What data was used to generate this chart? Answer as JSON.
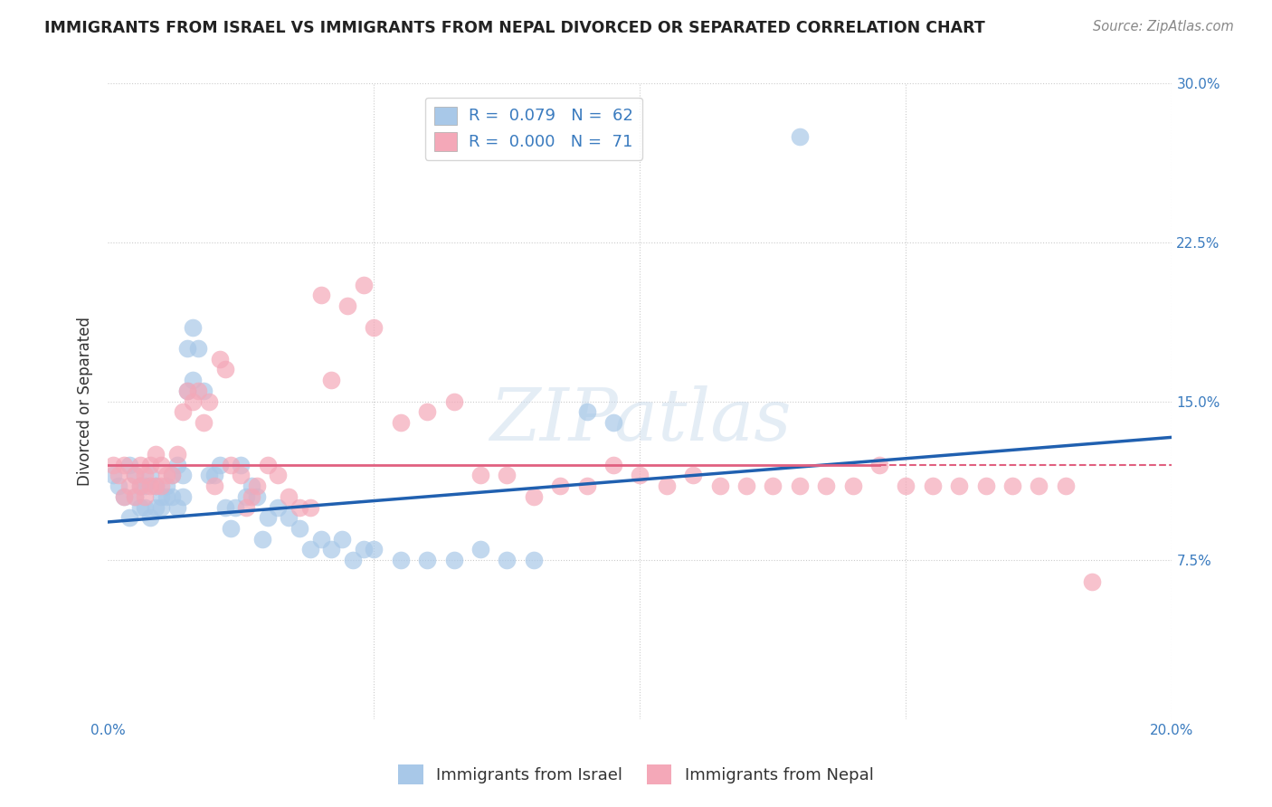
{
  "title": "IMMIGRANTS FROM ISRAEL VS IMMIGRANTS FROM NEPAL DIVORCED OR SEPARATED CORRELATION CHART",
  "source": "Source: ZipAtlas.com",
  "ylabel": "Divorced or Separated",
  "xlim": [
    0.0,
    0.2
  ],
  "ylim": [
    0.0,
    0.3
  ],
  "legend_israel_R": "0.079",
  "legend_israel_N": "62",
  "legend_nepal_R": "0.000",
  "legend_nepal_N": "71",
  "israel_color": "#a8c8e8",
  "nepal_color": "#f4a8b8",
  "israel_line_color": "#2060b0",
  "nepal_line_color": "#e06080",
  "israel_scatter_x": [
    0.001,
    0.002,
    0.003,
    0.004,
    0.004,
    0.005,
    0.005,
    0.006,
    0.006,
    0.007,
    0.007,
    0.008,
    0.008,
    0.009,
    0.009,
    0.01,
    0.01,
    0.011,
    0.011,
    0.012,
    0.012,
    0.013,
    0.013,
    0.014,
    0.014,
    0.015,
    0.015,
    0.016,
    0.016,
    0.017,
    0.018,
    0.019,
    0.02,
    0.021,
    0.022,
    0.023,
    0.024,
    0.025,
    0.026,
    0.027,
    0.028,
    0.029,
    0.03,
    0.032,
    0.034,
    0.036,
    0.038,
    0.04,
    0.042,
    0.044,
    0.046,
    0.048,
    0.05,
    0.055,
    0.06,
    0.065,
    0.07,
    0.075,
    0.08,
    0.09,
    0.095,
    0.13
  ],
  "israel_scatter_y": [
    0.115,
    0.11,
    0.105,
    0.12,
    0.095,
    0.105,
    0.115,
    0.1,
    0.11,
    0.1,
    0.11,
    0.095,
    0.115,
    0.1,
    0.11,
    0.105,
    0.1,
    0.11,
    0.105,
    0.105,
    0.115,
    0.1,
    0.12,
    0.105,
    0.115,
    0.175,
    0.155,
    0.185,
    0.16,
    0.175,
    0.155,
    0.115,
    0.115,
    0.12,
    0.1,
    0.09,
    0.1,
    0.12,
    0.105,
    0.11,
    0.105,
    0.085,
    0.095,
    0.1,
    0.095,
    0.09,
    0.08,
    0.085,
    0.08,
    0.085,
    0.075,
    0.08,
    0.08,
    0.075,
    0.075,
    0.075,
    0.08,
    0.075,
    0.075,
    0.145,
    0.14,
    0.275
  ],
  "nepal_scatter_x": [
    0.001,
    0.002,
    0.003,
    0.003,
    0.004,
    0.005,
    0.005,
    0.006,
    0.006,
    0.007,
    0.007,
    0.008,
    0.008,
    0.009,
    0.009,
    0.01,
    0.01,
    0.011,
    0.012,
    0.013,
    0.014,
    0.015,
    0.016,
    0.017,
    0.018,
    0.019,
    0.02,
    0.021,
    0.022,
    0.023,
    0.025,
    0.026,
    0.027,
    0.028,
    0.03,
    0.032,
    0.034,
    0.036,
    0.038,
    0.04,
    0.042,
    0.045,
    0.048,
    0.05,
    0.055,
    0.06,
    0.065,
    0.07,
    0.075,
    0.08,
    0.085,
    0.09,
    0.095,
    0.1,
    0.105,
    0.11,
    0.115,
    0.12,
    0.125,
    0.13,
    0.135,
    0.14,
    0.145,
    0.15,
    0.155,
    0.16,
    0.165,
    0.17,
    0.175,
    0.18,
    0.185
  ],
  "nepal_scatter_y": [
    0.12,
    0.115,
    0.105,
    0.12,
    0.11,
    0.105,
    0.115,
    0.11,
    0.12,
    0.105,
    0.115,
    0.11,
    0.12,
    0.11,
    0.125,
    0.11,
    0.12,
    0.115,
    0.115,
    0.125,
    0.145,
    0.155,
    0.15,
    0.155,
    0.14,
    0.15,
    0.11,
    0.17,
    0.165,
    0.12,
    0.115,
    0.1,
    0.105,
    0.11,
    0.12,
    0.115,
    0.105,
    0.1,
    0.1,
    0.2,
    0.16,
    0.195,
    0.205,
    0.185,
    0.14,
    0.145,
    0.15,
    0.115,
    0.115,
    0.105,
    0.11,
    0.11,
    0.12,
    0.115,
    0.11,
    0.115,
    0.11,
    0.11,
    0.11,
    0.11,
    0.11,
    0.11,
    0.12,
    0.11,
    0.11,
    0.11,
    0.11,
    0.11,
    0.11,
    0.11,
    0.065
  ],
  "watermark": "ZIPatlas",
  "background_color": "#ffffff",
  "grid_color": "#cccccc",
  "israel_line_x0": 0.0,
  "israel_line_y0": 0.093,
  "israel_line_x1": 0.2,
  "israel_line_y1": 0.133,
  "nepal_line_x0": 0.0,
  "nepal_line_y0": 0.12,
  "nepal_line_x1": 0.145,
  "nepal_line_y1": 0.12,
  "nepal_line_dash_x0": 0.145,
  "nepal_line_dash_y0": 0.12,
  "nepal_line_dash_x1": 0.2,
  "nepal_line_dash_y1": 0.12
}
